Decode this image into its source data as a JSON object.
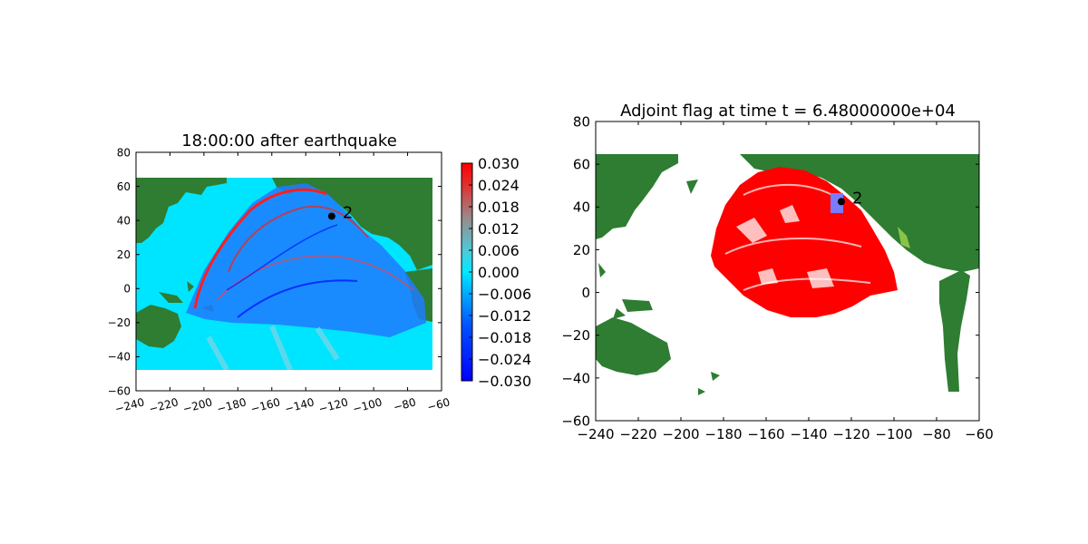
{
  "chart_data": [
    {
      "type": "heatmap",
      "title": "18:00:00 after earthquake",
      "xlabel": "",
      "ylabel": "",
      "xlim": [
        -240,
        -60
      ],
      "ylim": [
        -60,
        80
      ],
      "xticks": [
        -240,
        -220,
        -200,
        -180,
        -160,
        -140,
        -120,
        -100,
        -80,
        -60
      ],
      "xtick_labels": [
        "−240",
        "−220",
        "−200",
        "−180",
        "−160",
        "−140",
        "−120",
        "−100",
        "−80",
        "−60"
      ],
      "yticks": [
        -60,
        -40,
        -20,
        0,
        20,
        40,
        60,
        80
      ],
      "ytick_labels": [
        "−60",
        "−40",
        "−20",
        "0",
        "20",
        "40",
        "60",
        "80"
      ],
      "data_extent": {
        "x": [
          -235,
          -65
        ],
        "y": [
          -47,
          65
        ]
      },
      "colorbar": {
        "range": [
          -0.03,
          0.03
        ],
        "ticks": [
          0.03,
          0.024,
          0.018,
          0.012,
          0.006,
          0.0,
          -0.006,
          -0.012,
          -0.018,
          -0.024,
          -0.03
        ],
        "tick_labels": [
          "0.030",
          "0.024",
          "0.018",
          "0.012",
          "0.006",
          "0.000",
          "−0.006",
          "−0.012",
          "−0.018",
          "−0.024",
          "−0.030"
        ]
      },
      "gauge": {
        "label": "2",
        "x": -124.7,
        "y": 42.5
      },
      "grid": false
    },
    {
      "type": "heatmap",
      "title": "Adjoint flag at time t = 6.48000000e+04",
      "xlabel": "",
      "ylabel": "",
      "xlim": [
        -240,
        -60
      ],
      "ylim": [
        -60,
        80
      ],
      "xticks": [
        -240,
        -220,
        -200,
        -180,
        -160,
        -140,
        -120,
        -100,
        -80,
        -60
      ],
      "xtick_labels": [
        "−240",
        "−220",
        "−200",
        "−180",
        "−160",
        "−140",
        "−120",
        "−100",
        "−80",
        "−60"
      ],
      "yticks": [
        -60,
        -40,
        -20,
        0,
        20,
        40,
        60,
        80
      ],
      "ytick_labels": [
        "−60",
        "−40",
        "−20",
        "0",
        "20",
        "40",
        "60",
        "80"
      ],
      "data_extent": {
        "x": [
          -240,
          -65
        ],
        "y": [
          -46,
          65
        ]
      },
      "gauge": {
        "label": "2",
        "x": -124.7,
        "y": 42.5
      },
      "flag_region": {
        "x": [
          -130,
          -124
        ],
        "y": [
          38,
          46
        ]
      },
      "grid": false
    }
  ],
  "colors": {
    "land": "#2e7d32",
    "coast": "#8bc34a",
    "ocean": "#00e5ff",
    "flag": "#ff0000",
    "flag_box": "#7b7bff",
    "gauge_marker": "#000000"
  }
}
